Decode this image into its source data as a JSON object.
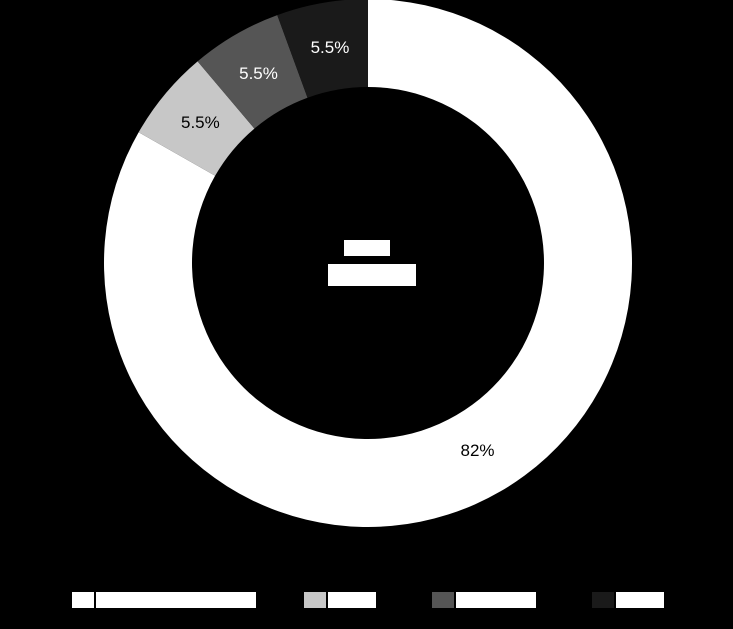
{
  "chart_data": {
    "type": "pie",
    "variant": "donut",
    "values": [
      82,
      5.5,
      5.5,
      5.5
    ],
    "slice_labels": [
      "82%",
      "5.5%",
      "5.5%",
      "5.5%"
    ],
    "colors": [
      "#ffffff",
      "#c7c7c7",
      "#555555",
      "#1a1a1a"
    ],
    "label_colors": [
      "#000000",
      "#000000",
      "#ffffff",
      "#ffffff"
    ],
    "start_angle_deg": 270,
    "legend_placement": "bottom"
  },
  "colors": {
    "background": "#000000"
  }
}
